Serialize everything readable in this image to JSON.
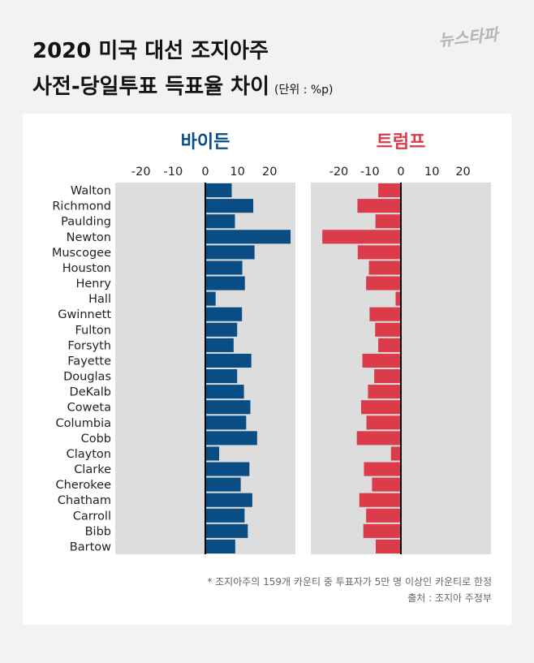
{
  "header": {
    "title_line1": "2020 미국 대선 조지아주",
    "title_line2": "사전-당일투표 득표율 차이",
    "unit": "(단위 : %p)",
    "logo": "뉴스타파"
  },
  "footnotes": {
    "note": "* 조지아주의 159개 카운티 중 투표자가 5만 명 이상인 카운티로 한정",
    "source": "출처 : 조지아 주정부"
  },
  "colors": {
    "biden": "#0a4d85",
    "trump": "#dc3b4a",
    "plot_bg": "#dddddd",
    "card_bg": "#ffffff",
    "page_bg": "#f2f2f2"
  },
  "chart_data": [
    {
      "type": "bar",
      "orientation": "horizontal",
      "title": "바이든",
      "categories": [
        "Walton",
        "Richmond",
        "Paulding",
        "Newton",
        "Muscogee",
        "Houston",
        "Henry",
        "Hall",
        "Gwinnett",
        "Fulton",
        "Forsyth",
        "Fayette",
        "Douglas",
        "DeKalb",
        "Coweta",
        "Columbia",
        "Cobb",
        "Clayton",
        "Clarke",
        "Cherokee",
        "Chatham",
        "Carroll",
        "Bibb",
        "Bartow"
      ],
      "values": [
        8.2,
        14.9,
        9.2,
        26.5,
        15.3,
        11.5,
        12.3,
        3.2,
        11.4,
        9.9,
        8.8,
        14.3,
        9.9,
        12.0,
        14.0,
        12.7,
        16.1,
        4.3,
        13.7,
        11.0,
        14.6,
        12.2,
        13.2,
        9.3
      ],
      "xlim": [
        -28,
        28
      ],
      "xticks": [
        -20,
        -10,
        0,
        10,
        20
      ],
      "grid": false
    },
    {
      "type": "bar",
      "orientation": "horizontal",
      "title": "트럼프",
      "categories": [
        "Walton",
        "Richmond",
        "Paulding",
        "Newton",
        "Muscogee",
        "Houston",
        "Henry",
        "Hall",
        "Gwinnett",
        "Fulton",
        "Forsyth",
        "Fayette",
        "Douglas",
        "DeKalb",
        "Coweta",
        "Columbia",
        "Cobb",
        "Clayton",
        "Clarke",
        "Cherokee",
        "Chatham",
        "Carroll",
        "Bibb",
        "Bartow"
      ],
      "values": [
        -7.3,
        -14.0,
        -8.2,
        -25.3,
        -13.9,
        -10.3,
        -11.2,
        -1.7,
        -10.1,
        -8.3,
        -7.3,
        -12.4,
        -8.6,
        -10.6,
        -12.8,
        -11.1,
        -14.2,
        -3.2,
        -11.9,
        -9.3,
        -13.4,
        -11.2,
        -12.1,
        -8.1
      ],
      "xlim": [
        -29,
        29
      ],
      "xticks": [
        -20,
        -10,
        0,
        10,
        20
      ],
      "grid": false
    }
  ]
}
